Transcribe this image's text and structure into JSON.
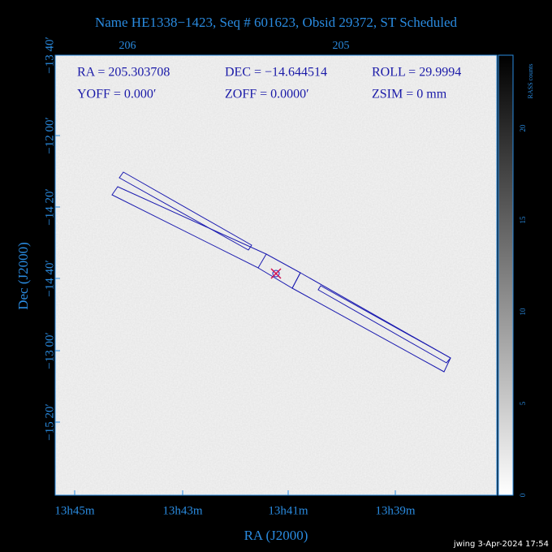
{
  "header": {
    "title": "Name HE1338−1423, Seq # 601623, Obsid 29372, ST Scheduled"
  },
  "axes": {
    "x_label": "RA (J2000)",
    "y_label": "Dec (J2000)",
    "x_ticks": [
      "13h45m",
      "13h43m",
      "13h41m",
      "13h39m"
    ],
    "x_top_ticks": [
      "206",
      "205"
    ],
    "y_ticks": [
      "−13 40′",
      "−12 00′",
      "−14 20′",
      "−14 40′",
      "−13 00′",
      "−15 20′"
    ]
  },
  "info": {
    "rows": [
      [
        "RA = 205.303708",
        "DEC = −14.644514",
        "ROLL = 29.9994"
      ],
      [
        "YOFF =    0.000′",
        "ZOFF =   0.0000′",
        "ZSIM = 0 mm"
      ]
    ]
  },
  "colorbar": {
    "label": "RASS counts",
    "ticks": [
      "0",
      "5",
      "10",
      "15",
      "20"
    ]
  },
  "footer": {
    "text": "jwing  3-Apr-2024 17:54"
  }
}
